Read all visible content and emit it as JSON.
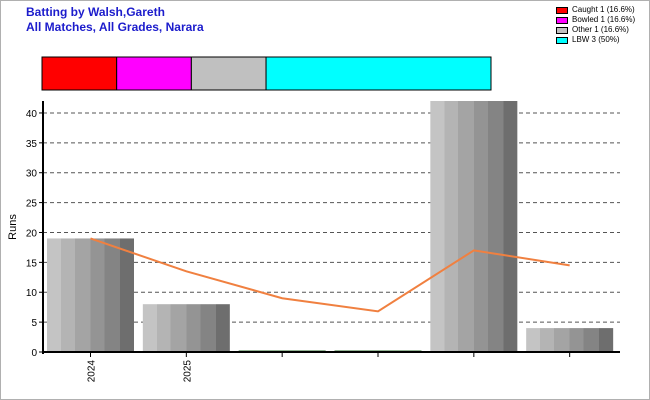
{
  "title": "Batting by Walsh,Gareth",
  "subtitle": "All Matches, All Grades, Narara",
  "legend": [
    {
      "label": "Caught 1 (16.6%)",
      "color": "#ff0000",
      "value": 16.6
    },
    {
      "label": "Bowled 1 (16.6%)",
      "color": "#ff00ff",
      "value": 16.6
    },
    {
      "label": "Other 1 (16.6%)",
      "color": "#c0c0c0",
      "value": 16.6
    },
    {
      "label": "LBW 3 (50%)",
      "color": "#00ffff",
      "value": 50
    }
  ],
  "chart_data": {
    "type": "bar",
    "ylabel": "Runs",
    "ylim": [
      0,
      42
    ],
    "yticks": [
      0,
      5,
      10,
      15,
      20,
      25,
      30,
      35,
      40
    ],
    "grid": true,
    "categories": [
      "2024",
      "2025",
      "",
      "",
      "",
      ""
    ],
    "values": [
      19,
      8,
      0,
      0,
      42,
      4
    ],
    "line_values": [
      19,
      13.5,
      9,
      6.8,
      17,
      14.5
    ],
    "line_color": "#f08040"
  }
}
